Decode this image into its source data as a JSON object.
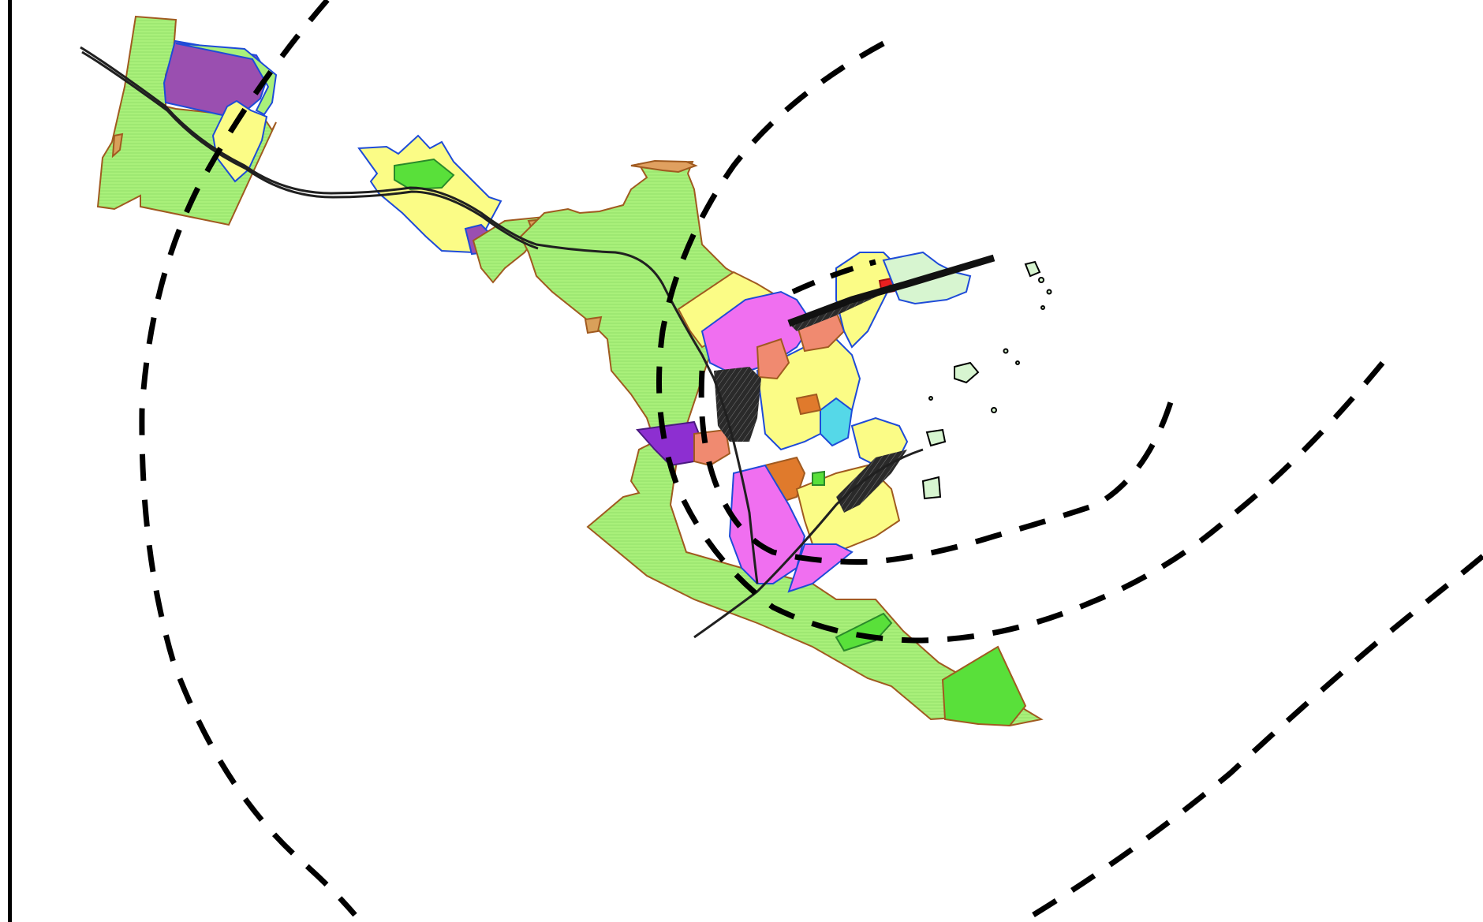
{
  "map": {
    "background_color": "#ffffff",
    "frame_color": "#000000",
    "colors": {
      "green_zone": "#a9f07a",
      "bright_green": "#59e03a",
      "purple_zone": "#9a4fb0",
      "violet_zone": "#8d2fd1",
      "yellow_zone": "#fbfc86",
      "orange_zone": "#e07a2c",
      "tan_zone": "#d9a05a",
      "salmon_zone": "#f08a70",
      "magenta_zone": "#f06ff0",
      "cyan_water": "#55d8e8",
      "blue_outline": "#1e4bd8",
      "red_zone": "#e82020",
      "brown_outline": "#a05a20"
    },
    "features": {
      "buffer_rings": "dashed-rings",
      "railway": "railway-lines",
      "islands": "offshore-islets"
    }
  }
}
